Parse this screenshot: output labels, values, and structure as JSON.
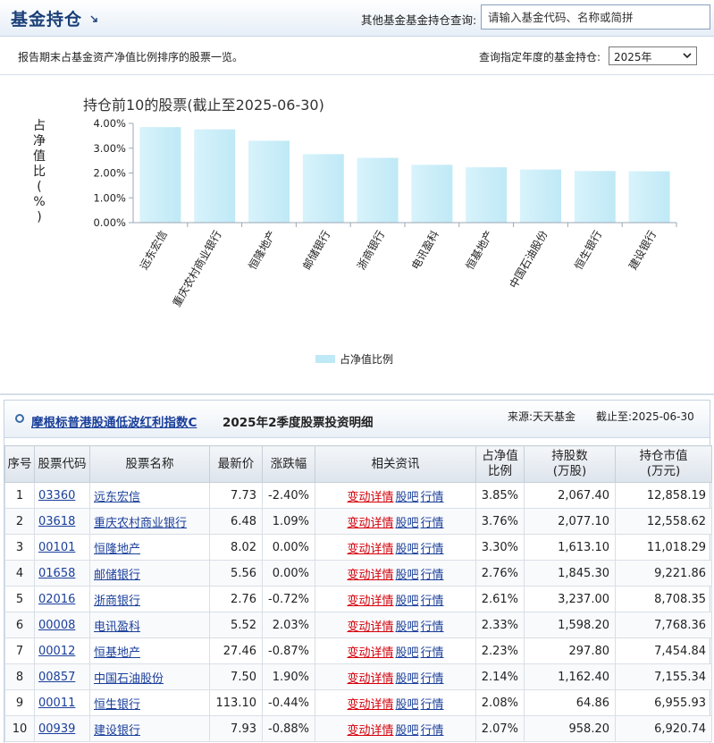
{
  "header": {
    "title": "基金持仓",
    "search_label": "其他基金基金持仓查询:",
    "search_placeholder": "请输入基金代码、名称或简拼"
  },
  "subbar": {
    "description": "报告期末占基金资产净值比例排序的股票一览。",
    "year_label": "查询指定年度的基金持仓:",
    "year_selected": "2025年"
  },
  "chart_data": {
    "type": "bar",
    "title": "持仓前10的股票(截止至2025-06-30)",
    "ylabel": "占净值比(%)",
    "ylabel_chars": [
      "占",
      "净",
      "值",
      "比",
      "(",
      "%",
      ")"
    ],
    "ylim": [
      0,
      4
    ],
    "yticks": [
      "0.00%",
      "1.00%",
      "2.00%",
      "3.00%",
      "4.00%"
    ],
    "categories": [
      "远东宏信",
      "重庆农村商业银行",
      "恒隆地产",
      "邮储银行",
      "浙商银行",
      "电讯盈科",
      "恒基地产",
      "中国石油股份",
      "恒生银行",
      "建设银行"
    ],
    "series": [
      {
        "name": "占净值比例",
        "values": [
          3.85,
          3.76,
          3.3,
          2.76,
          2.61,
          2.33,
          2.23,
          2.14,
          2.08,
          2.07
        ]
      }
    ],
    "legend": "bottom-center",
    "bar_color": "#bfe9f6",
    "grid": false
  },
  "panel": {
    "fund_name": "摩根标普港股通低波红利指数C",
    "period_title": "2025年2季度股票投资明细",
    "source": "来源:天天基金",
    "as_of": "截止至:2025-06-30"
  },
  "table": {
    "headers": {
      "idx": "序号",
      "code": "股票代码",
      "name": "股票名称",
      "price": "最新价",
      "change": "涨跌幅",
      "links": "相关资讯",
      "ratio_1": "占净值",
      "ratio_2": "比例",
      "shares_1": "持股数",
      "shares_2": "(万股)",
      "value_1": "持仓市值",
      "value_2": "(万元)"
    },
    "link_labels": [
      "变动详情",
      "股吧",
      "行情"
    ],
    "rows": [
      {
        "idx": "1",
        "code": "03360",
        "name": "远东宏信",
        "price": "7.73",
        "change": "-2.40%",
        "dir": "down",
        "ratio": "3.85%",
        "shares": "2,067.40",
        "value": "12,858.19"
      },
      {
        "idx": "2",
        "code": "03618",
        "name": "重庆农村商业银行",
        "price": "6.48",
        "change": "1.09%",
        "dir": "up",
        "ratio": "3.76%",
        "shares": "2,077.10",
        "value": "12,558.62"
      },
      {
        "idx": "3",
        "code": "00101",
        "name": "恒隆地产",
        "price": "8.02",
        "change": "0.00%",
        "dir": "flat",
        "ratio": "3.30%",
        "shares": "1,613.10",
        "value": "11,018.29"
      },
      {
        "idx": "4",
        "code": "01658",
        "name": "邮储银行",
        "price": "5.56",
        "change": "0.00%",
        "dir": "flat",
        "ratio": "2.76%",
        "shares": "1,845.30",
        "value": "9,221.86"
      },
      {
        "idx": "5",
        "code": "02016",
        "name": "浙商银行",
        "price": "2.76",
        "change": "-0.72%",
        "dir": "down",
        "ratio": "2.61%",
        "shares": "3,237.00",
        "value": "8,708.35"
      },
      {
        "idx": "6",
        "code": "00008",
        "name": "电讯盈科",
        "price": "5.52",
        "change": "2.03%",
        "dir": "up",
        "ratio": "2.33%",
        "shares": "1,598.20",
        "value": "7,768.36"
      },
      {
        "idx": "7",
        "code": "00012",
        "name": "恒基地产",
        "price": "27.46",
        "change": "-0.87%",
        "dir": "down",
        "ratio": "2.23%",
        "shares": "297.80",
        "value": "7,454.84"
      },
      {
        "idx": "8",
        "code": "00857",
        "name": "中国石油股份",
        "price": "7.50",
        "change": "1.90%",
        "dir": "up",
        "ratio": "2.14%",
        "shares": "1,162.40",
        "value": "7,155.34"
      },
      {
        "idx": "9",
        "code": "00011",
        "name": "恒生银行",
        "price": "113.10",
        "change": "-0.44%",
        "dir": "down",
        "ratio": "2.08%",
        "shares": "64.86",
        "value": "6,955.93"
      },
      {
        "idx": "10",
        "code": "00939",
        "name": "建设银行",
        "price": "7.93",
        "change": "-0.88%",
        "dir": "down",
        "ratio": "2.07%",
        "shares": "958.20",
        "value": "6,920.74"
      }
    ]
  }
}
